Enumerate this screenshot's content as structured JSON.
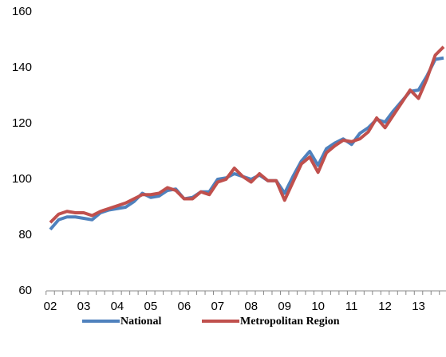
{
  "chart_data": {
    "type": "line",
    "categories": [
      "02",
      null,
      null,
      null,
      "03",
      null,
      null,
      null,
      "04",
      null,
      null,
      null,
      "05",
      null,
      null,
      null,
      "06",
      null,
      null,
      null,
      "07",
      null,
      null,
      null,
      "08",
      null,
      null,
      null,
      "09",
      null,
      null,
      null,
      "10",
      null,
      null,
      null,
      "11",
      null,
      null,
      null,
      "12",
      null,
      null,
      null,
      "13",
      null,
      null,
      null
    ],
    "series": [
      {
        "name": "National",
        "color": "#4f81bd",
        "values": [
          82,
          85.5,
          86.5,
          86.5,
          86,
          85.5,
          88,
          89,
          89.5,
          90,
          92,
          95,
          93.5,
          94,
          96,
          96.5,
          93,
          93.5,
          95.5,
          95.5,
          100,
          100.5,
          102,
          101,
          100,
          101.5,
          99.5,
          99.5,
          95,
          101,
          106.5,
          110,
          105,
          111,
          113,
          114.5,
          112.5,
          116.5,
          118.5,
          121.5,
          120.5,
          124.5,
          128,
          131.5,
          132,
          137,
          143,
          143.5
        ]
      },
      {
        "name": "Metropolitan Region",
        "color": "#c0504d",
        "values": [
          84.5,
          87.5,
          88.5,
          88,
          88,
          87,
          88.5,
          89.5,
          90.5,
          91.5,
          93,
          94.5,
          94.5,
          95,
          97,
          96,
          93,
          93,
          95.5,
          94.5,
          99,
          100,
          104,
          101,
          99,
          102,
          99.5,
          99.5,
          92.5,
          99,
          105.5,
          108,
          102.5,
          109.5,
          112,
          114,
          113.5,
          114.5,
          117,
          122,
          118.5,
          123,
          127.5,
          132,
          129,
          136,
          144.5,
          147.5
        ]
      }
    ],
    "ylim": [
      60,
      160
    ],
    "yticks": [
      60,
      80,
      100,
      120,
      140,
      160
    ],
    "legend": "bottom"
  }
}
